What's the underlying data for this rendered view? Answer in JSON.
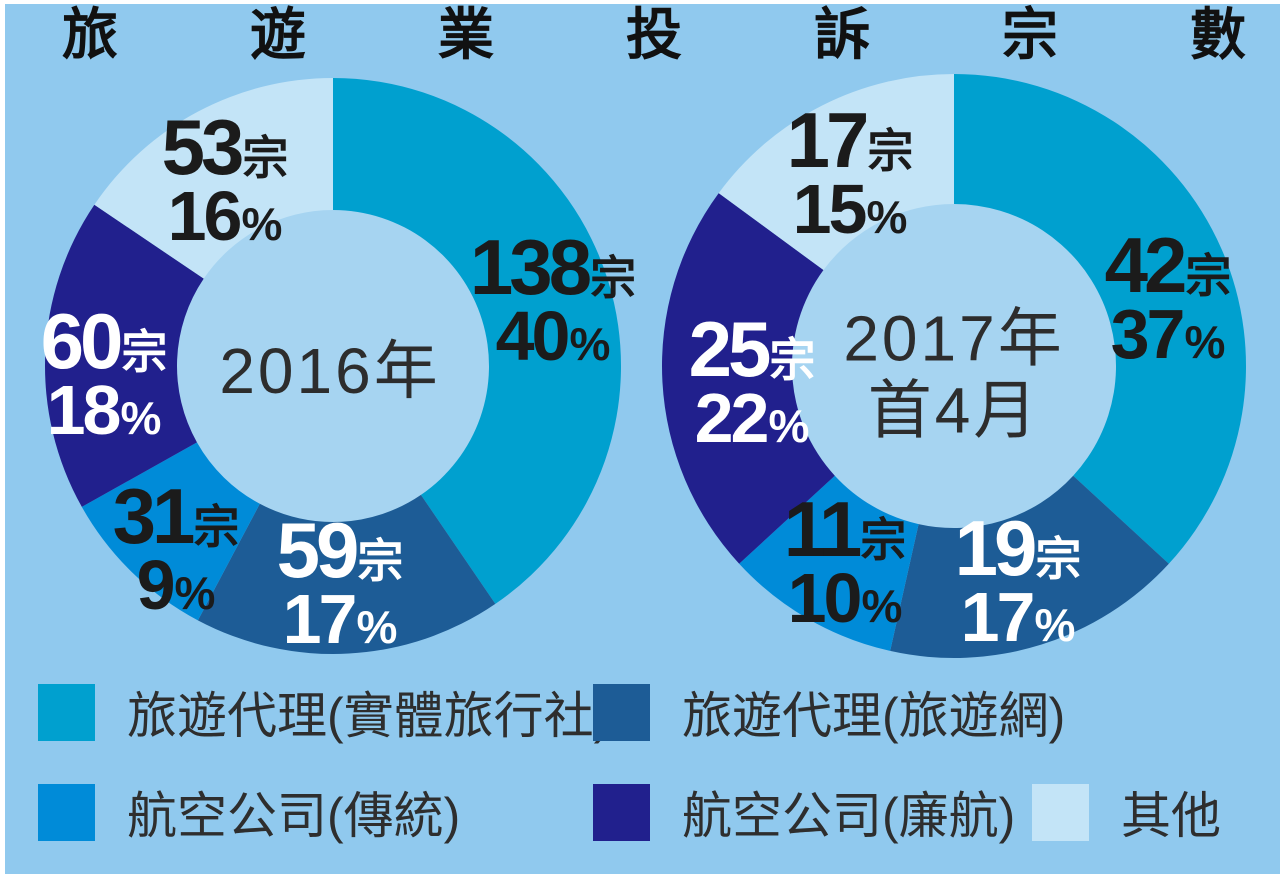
{
  "title": {
    "text": "旅遊業投訴宗數",
    "chars": [
      "旅",
      "遊",
      "業",
      "投",
      "訴",
      "宗",
      "數"
    ]
  },
  "background_color": "#90c9ee",
  "hole_color": "#a6d4f1",
  "unit_suffix": "宗",
  "percent_suffix": "%",
  "chart_data": {
    "type": "pie",
    "title": "旅遊業投訴宗數",
    "legend_position": "bottom",
    "categories": [
      "旅遊代理(實體旅行社)",
      "旅遊代理(旅遊網)",
      "航空公司(傳統)",
      "航空公司(廉航)",
      "其他"
    ],
    "colors": [
      "#00a0cf",
      "#1d5c96",
      "#008bd8",
      "#21208d",
      "#c3e4f7"
    ],
    "label_text_colors": [
      "black",
      "white",
      "black",
      "white",
      "black"
    ],
    "charts": [
      {
        "name": "2016年",
        "center_label_lines": [
          "2016年"
        ],
        "values": [
          138,
          59,
          31,
          60,
          53
        ],
        "percents": [
          40,
          17,
          9,
          18,
          16
        ]
      },
      {
        "name": "2017年首4月",
        "center_label_lines": [
          "2017年",
          "首4月"
        ],
        "values": [
          42,
          19,
          11,
          25,
          17
        ],
        "percents": [
          37,
          17,
          10,
          22,
          15
        ]
      }
    ]
  }
}
